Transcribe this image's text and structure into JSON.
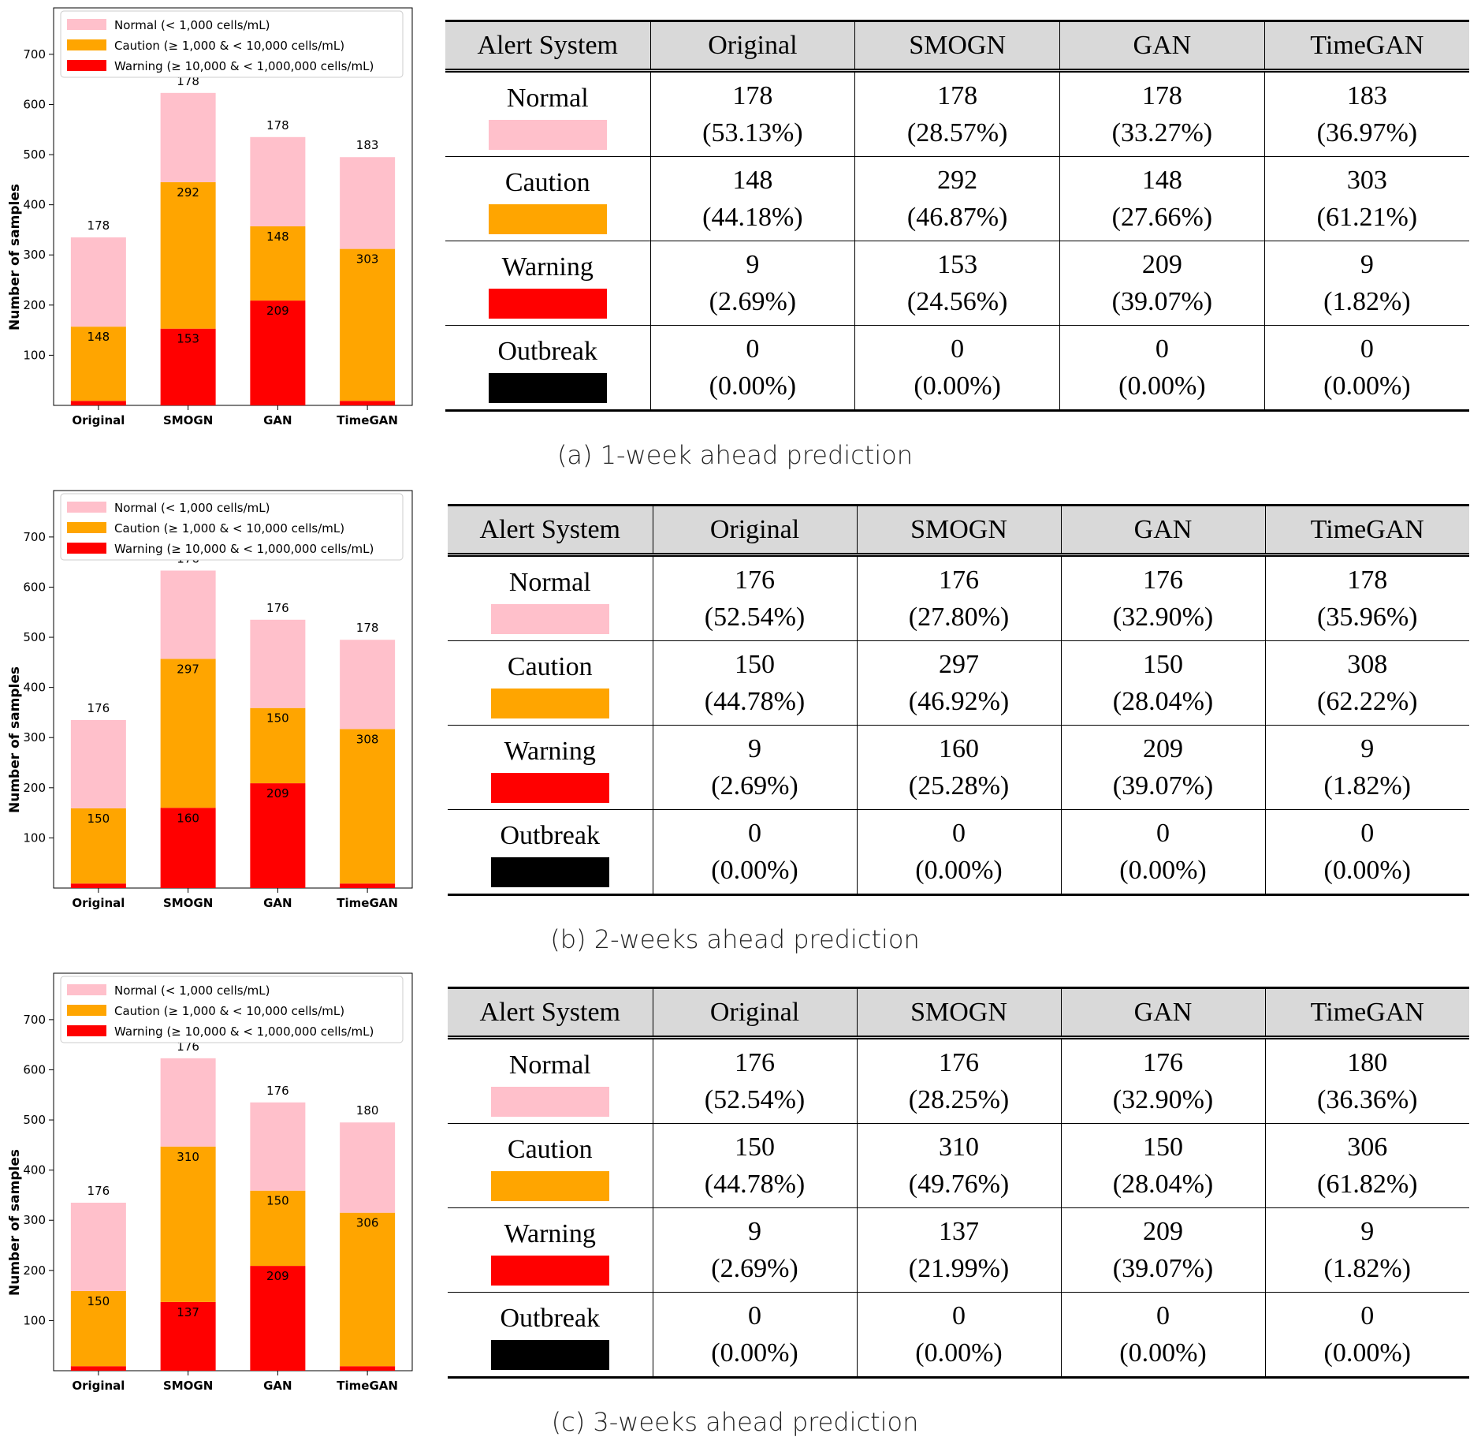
{
  "colors": {
    "Normal": "#ffc0cb",
    "Caution": "#ffa500",
    "Warning": "#ff0000",
    "Outbreak": "#000000"
  },
  "chart_data": [
    {
      "type": "bar",
      "stacked": true,
      "categories": [
        "Original",
        "SMOGN",
        "GAN",
        "TimeGAN"
      ],
      "series": [
        {
          "name": "Warning",
          "values": [
            9,
            153,
            209,
            9
          ]
        },
        {
          "name": "Caution",
          "values": [
            148,
            292,
            148,
            303
          ]
        },
        {
          "name": "Normal",
          "values": [
            178,
            178,
            178,
            183
          ]
        }
      ],
      "legend": [
        "Normal (< 1,000 cells/mL)",
        "Caution (≥ 1,000 & < 10,000 cells/mL)",
        "Warning (≥ 10,000 & < 1,000,000 cells/mL)"
      ],
      "legend_position": "top",
      "ylabel": "Number of samples",
      "yticks": [
        100,
        200,
        300,
        400,
        500,
        600,
        700
      ],
      "ylim": [
        0,
        780
      ]
    },
    {
      "type": "bar",
      "stacked": true,
      "categories": [
        "Original",
        "SMOGN",
        "GAN",
        "TimeGAN"
      ],
      "series": [
        {
          "name": "Warning",
          "values": [
            9,
            160,
            209,
            9
          ]
        },
        {
          "name": "Caution",
          "values": [
            150,
            297,
            150,
            308
          ]
        },
        {
          "name": "Normal",
          "values": [
            176,
            176,
            176,
            178
          ]
        }
      ],
      "legend": [
        "Normal (< 1,000 cells/mL)",
        "Caution (≥ 1,000 & < 10,000 cells/mL)",
        "Warning (≥ 10,000 & < 1,000,000 cells/mL)"
      ],
      "legend_position": "top",
      "ylabel": "Number of samples",
      "yticks": [
        100,
        200,
        300,
        400,
        500,
        600,
        700
      ],
      "ylim": [
        0,
        780
      ]
    },
    {
      "type": "bar",
      "stacked": true,
      "categories": [
        "Original",
        "SMOGN",
        "GAN",
        "TimeGAN"
      ],
      "series": [
        {
          "name": "Warning",
          "values": [
            9,
            137,
            209,
            9
          ]
        },
        {
          "name": "Caution",
          "values": [
            150,
            310,
            150,
            306
          ]
        },
        {
          "name": "Normal",
          "values": [
            176,
            176,
            176,
            180
          ]
        }
      ],
      "legend": [
        "Normal (< 1,000 cells/mL)",
        "Caution (≥ 1,000 & < 10,000 cells/mL)",
        "Warning (≥ 10,000 & < 1,000,000 cells/mL)"
      ],
      "legend_position": "top",
      "ylabel": "Number of samples",
      "yticks": [
        100,
        200,
        300,
        400,
        500,
        600,
        700
      ],
      "ylim": [
        0,
        780
      ]
    }
  ],
  "tables": [
    {
      "header": [
        "Alert System",
        "Original",
        "SMOGN",
        "GAN",
        "TimeGAN"
      ],
      "rows": [
        {
          "label": "Normal",
          "cells": [
            [
              "178",
              "(53.13%)"
            ],
            [
              "178",
              "(28.57%)"
            ],
            [
              "178",
              "(33.27%)"
            ],
            [
              "183",
              "(36.97%)"
            ]
          ]
        },
        {
          "label": "Caution",
          "cells": [
            [
              "148",
              "(44.18%)"
            ],
            [
              "292",
              "(46.87%)"
            ],
            [
              "148",
              "(27.66%)"
            ],
            [
              "303",
              "(61.21%)"
            ]
          ]
        },
        {
          "label": "Warning",
          "cells": [
            [
              "9",
              "(2.69%)"
            ],
            [
              "153",
              "(24.56%)"
            ],
            [
              "209",
              "(39.07%)"
            ],
            [
              "9",
              "(1.82%)"
            ]
          ]
        },
        {
          "label": "Outbreak",
          "cells": [
            [
              "0",
              "(0.00%)"
            ],
            [
              "0",
              "(0.00%)"
            ],
            [
              "0",
              "(0.00%)"
            ],
            [
              "0",
              "(0.00%)"
            ]
          ]
        }
      ],
      "caption": "(a) 1-week ahead prediction"
    },
    {
      "header": [
        "Alert System",
        "Original",
        "SMOGN",
        "GAN",
        "TimeGAN"
      ],
      "rows": [
        {
          "label": "Normal",
          "cells": [
            [
              "176",
              "(52.54%)"
            ],
            [
              "176",
              "(27.80%)"
            ],
            [
              "176",
              "(32.90%)"
            ],
            [
              "178",
              "(35.96%)"
            ]
          ]
        },
        {
          "label": "Caution",
          "cells": [
            [
              "150",
              "(44.78%)"
            ],
            [
              "297",
              "(46.92%)"
            ],
            [
              "150",
              "(28.04%)"
            ],
            [
              "308",
              "(62.22%)"
            ]
          ]
        },
        {
          "label": "Warning",
          "cells": [
            [
              "9",
              "(2.69%)"
            ],
            [
              "160",
              "(25.28%)"
            ],
            [
              "209",
              "(39.07%)"
            ],
            [
              "9",
              "(1.82%)"
            ]
          ]
        },
        {
          "label": "Outbreak",
          "cells": [
            [
              "0",
              "(0.00%)"
            ],
            [
              "0",
              "(0.00%)"
            ],
            [
              "0",
              "(0.00%)"
            ],
            [
              "0",
              "(0.00%)"
            ]
          ]
        }
      ],
      "caption": "(b) 2-weeks ahead prediction"
    },
    {
      "header": [
        "Alert System",
        "Original",
        "SMOGN",
        "GAN",
        "TimeGAN"
      ],
      "rows": [
        {
          "label": "Normal",
          "cells": [
            [
              "176",
              "(52.54%)"
            ],
            [
              "176",
              "(28.25%)"
            ],
            [
              "176",
              "(32.90%)"
            ],
            [
              "180",
              "(36.36%)"
            ]
          ]
        },
        {
          "label": "Caution",
          "cells": [
            [
              "150",
              "(44.78%)"
            ],
            [
              "310",
              "(49.76%)"
            ],
            [
              "150",
              "(28.04%)"
            ],
            [
              "306",
              "(61.82%)"
            ]
          ]
        },
        {
          "label": "Warning",
          "cells": [
            [
              "9",
              "(2.69%)"
            ],
            [
              "137",
              "(21.99%)"
            ],
            [
              "209",
              "(39.07%)"
            ],
            [
              "9",
              "(1.82%)"
            ]
          ]
        },
        {
          "label": "Outbreak",
          "cells": [
            [
              "0",
              "(0.00%)"
            ],
            [
              "0",
              "(0.00%)"
            ],
            [
              "0",
              "(0.00%)"
            ],
            [
              "0",
              "(0.00%)"
            ]
          ]
        }
      ],
      "caption": "(c) 3-weeks ahead prediction"
    }
  ]
}
